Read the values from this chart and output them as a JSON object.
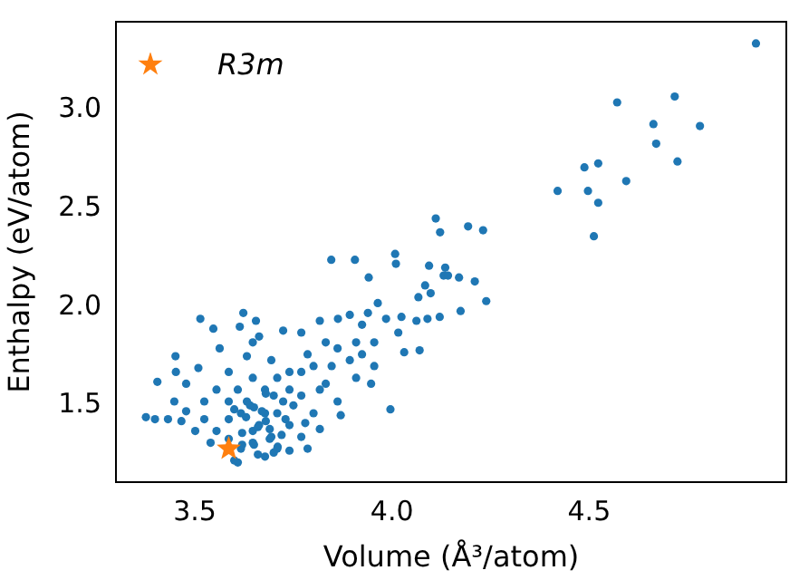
{
  "chart_data": {
    "type": "scatter",
    "xlabel": "Volume (Å³/atom)",
    "ylabel": "Enthalpy (eV/atom)",
    "xlim": [
      3.3,
      5.0
    ],
    "ylim": [
      1.11,
      3.45
    ],
    "xticks": [
      {
        "value": 3.5,
        "label": "3.5"
      },
      {
        "value": 4,
        "label": "4.0"
      },
      {
        "value": 4.5,
        "label": "4.5"
      }
    ],
    "yticks": [
      {
        "value": 1.5,
        "label": "1.5"
      },
      {
        "value": 2,
        "label": "2.0"
      },
      {
        "value": 2.5,
        "label": "2.5"
      },
      {
        "value": 3,
        "label": "3.0"
      }
    ],
    "grid": false,
    "legend": "top left",
    "series": [
      {
        "color": "#1f77b4",
        "marker": "circle",
        "x": [
          4.923,
          4.571,
          4.717,
          4.663,
          4.781,
          4.67,
          4.488,
          4.523,
          4.724,
          4.594,
          4.42,
          4.497,
          4.523,
          4.512,
          4.111,
          4.122,
          4.193,
          4.231,
          3.846,
          3.906,
          4.008,
          4.01,
          3.941,
          4.094,
          4.135,
          4.131,
          4.142,
          4.17,
          4.21,
          4.084,
          4.098,
          4.067,
          4.239,
          4.174,
          4.121,
          4.09,
          4.062,
          4.024,
          3.985,
          3.964,
          4.016,
          4.031,
          4.07,
          3.996,
          3.376,
          3.399,
          3.432,
          3.466,
          3.405,
          3.451,
          3.514,
          3.547,
          3.563,
          3.623,
          3.614,
          3.655,
          3.452,
          3.478,
          3.509,
          3.448,
          3.478,
          3.501,
          3.524,
          3.609,
          3.678,
          3.74,
          3.786,
          3.817,
          3.87,
          3.862,
          3.909,
          3.947,
          3.955,
          3.724,
          3.77,
          3.817,
          3.863,
          3.893,
          3.924,
          3.939,
          3.955,
          3.893,
          3.832,
          3.786,
          3.74,
          3.694,
          3.647,
          3.663,
          3.632,
          3.586,
          3.555,
          3.524,
          3.555,
          3.586,
          3.632,
          3.678,
          3.724,
          3.77,
          3.817,
          3.801,
          3.74,
          3.694,
          3.647,
          3.617,
          3.663,
          3.617,
          3.586,
          3.609,
          3.647,
          3.709,
          3.77,
          3.801,
          3.847,
          3.862,
          3.909,
          3.924,
          3.832,
          3.74,
          3.709,
          3.678,
          3.647,
          3.709,
          3.77,
          3.586,
          3.54,
          3.62,
          3.65,
          3.68,
          3.7,
          3.72,
          3.6,
          3.63,
          3.66,
          3.69,
          3.71,
          3.64,
          3.67,
          3.7,
          3.73,
          3.62,
          3.66,
          3.69,
          3.6,
          3.75,
          3.78,
          3.65,
          3.68
        ],
        "values": [
          3.34,
          3.04,
          3.07,
          2.93,
          2.92,
          2.83,
          2.71,
          2.73,
          2.74,
          2.64,
          2.59,
          2.59,
          2.53,
          2.36,
          2.45,
          2.38,
          2.41,
          2.39,
          2.24,
          2.24,
          2.27,
          2.22,
          2.15,
          2.21,
          2.2,
          2.16,
          2.16,
          2.15,
          2.13,
          2.11,
          2.07,
          2.05,
          2.03,
          1.98,
          1.95,
          1.94,
          1.93,
          1.95,
          1.94,
          2.02,
          1.87,
          1.77,
          1.78,
          1.48,
          1.44,
          1.43,
          1.43,
          1.42,
          1.62,
          1.75,
          1.94,
          1.89,
          1.79,
          1.97,
          1.9,
          1.93,
          1.67,
          1.61,
          1.69,
          1.52,
          1.47,
          1.37,
          1.52,
          1.21,
          1.24,
          1.27,
          1.28,
          1.38,
          1.45,
          1.52,
          1.64,
          1.61,
          1.7,
          1.88,
          1.87,
          1.93,
          1.94,
          1.96,
          1.91,
          1.97,
          1.82,
          1.73,
          1.82,
          1.76,
          1.67,
          1.73,
          1.82,
          1.85,
          1.75,
          1.67,
          1.58,
          1.43,
          1.37,
          1.43,
          1.52,
          1.58,
          1.52,
          1.55,
          1.58,
          1.46,
          1.4,
          1.34,
          1.31,
          1.28,
          1.4,
          1.46,
          1.52,
          1.58,
          1.64,
          1.64,
          1.67,
          1.7,
          1.7,
          1.79,
          1.82,
          1.76,
          1.61,
          1.58,
          1.46,
          1.46,
          1.37,
          1.28,
          1.34,
          1.33,
          1.31,
          1.36,
          1.3,
          1.42,
          1.26,
          1.35,
          1.48,
          1.44,
          1.39,
          1.33,
          1.29,
          1.5,
          1.47,
          1.55,
          1.43,
          1.3,
          1.25,
          1.38,
          1.22,
          1.5,
          1.41,
          1.49,
          1.56
        ]
      },
      {
        "name": "R3m",
        "color": "#ff7f0e",
        "marker": "star",
        "x": [
          3.586
        ],
        "values": [
          1.28
        ]
      }
    ]
  }
}
